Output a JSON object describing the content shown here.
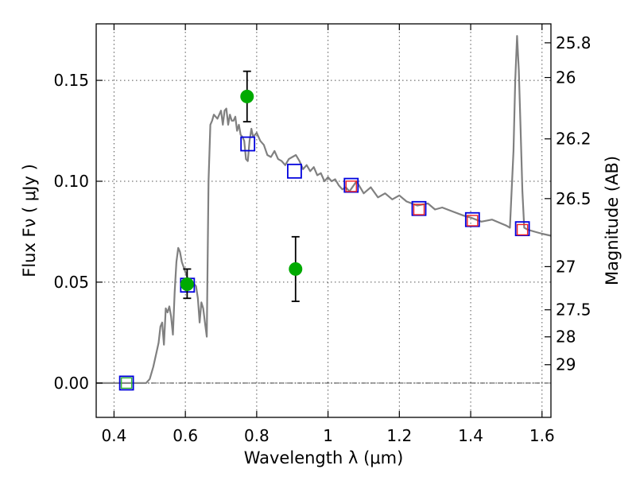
{
  "chart_data": {
    "type": "line",
    "xlabel": "Wavelength  λ (μm)",
    "ylabel": "Flux  Fν  ( μJy )",
    "y2label": "Magnitude (AB)",
    "xlim": [
      0.35,
      1.625
    ],
    "ylim": [
      -0.017,
      0.178
    ],
    "grid": true,
    "x_ticks": [
      0.4,
      0.6,
      0.8,
      1.0,
      1.2,
      1.4,
      1.6
    ],
    "x_tick_labels": [
      "0.4",
      "0.6",
      "0.8",
      "1",
      "1.2",
      "1.4",
      "1.6"
    ],
    "y_ticks": [
      0.0,
      0.05,
      0.1,
      0.15
    ],
    "y_tick_labels": [
      "0.00",
      "0.05",
      "0.10",
      "0.15"
    ],
    "y2_ticks": [
      {
        "label": "25.8",
        "flux": 0.1686
      },
      {
        "label": "26",
        "flux": 0.1514
      },
      {
        "label": "26.2",
        "flux": 0.121
      },
      {
        "label": "26.5",
        "flux": 0.0914
      },
      {
        "label": "27",
        "flux": 0.0577
      },
      {
        "label": "27.5",
        "flux": 0.0363
      },
      {
        "label": "28",
        "flux": 0.0229
      },
      {
        "label": "29",
        "flux": 0.0091
      }
    ],
    "series": [
      {
        "kind": "model_sed",
        "color": "#808080",
        "x": [
          0.35,
          0.49,
          0.5,
          0.51,
          0.52,
          0.525,
          0.53,
          0.535,
          0.54,
          0.545,
          0.55,
          0.555,
          0.56,
          0.565,
          0.57,
          0.575,
          0.58,
          0.585,
          0.59,
          0.6,
          0.61,
          0.62,
          0.63,
          0.635,
          0.64,
          0.645,
          0.65,
          0.655,
          0.66,
          0.665,
          0.67,
          0.675,
          0.68,
          0.69,
          0.7,
          0.705,
          0.71,
          0.715,
          0.72,
          0.725,
          0.73,
          0.735,
          0.74,
          0.745,
          0.75,
          0.755,
          0.76,
          0.765,
          0.77,
          0.775,
          0.78,
          0.785,
          0.79,
          0.8,
          0.81,
          0.82,
          0.83,
          0.84,
          0.85,
          0.86,
          0.87,
          0.88,
          0.89,
          0.9,
          0.91,
          0.92,
          0.93,
          0.94,
          0.95,
          0.96,
          0.97,
          0.98,
          0.99,
          1.0,
          1.01,
          1.02,
          1.03,
          1.04,
          1.05,
          1.06,
          1.08,
          1.1,
          1.12,
          1.14,
          1.16,
          1.18,
          1.2,
          1.22,
          1.25,
          1.28,
          1.3,
          1.32,
          1.35,
          1.38,
          1.4,
          1.43,
          1.46,
          1.5,
          1.51,
          1.52,
          1.525,
          1.53,
          1.535,
          1.54,
          1.545,
          1.55,
          1.56,
          1.58,
          1.6,
          1.625
        ],
        "values": [
          0.0,
          0.0,
          0.002,
          0.008,
          0.016,
          0.02,
          0.028,
          0.03,
          0.019,
          0.037,
          0.035,
          0.038,
          0.033,
          0.024,
          0.045,
          0.06,
          0.067,
          0.065,
          0.06,
          0.055,
          0.05,
          0.05,
          0.048,
          0.042,
          0.03,
          0.04,
          0.037,
          0.03,
          0.023,
          0.1,
          0.128,
          0.13,
          0.133,
          0.131,
          0.135,
          0.128,
          0.135,
          0.136,
          0.128,
          0.133,
          0.13,
          0.13,
          0.132,
          0.125,
          0.128,
          0.123,
          0.122,
          0.12,
          0.111,
          0.11,
          0.12,
          0.126,
          0.122,
          0.124,
          0.12,
          0.118,
          0.113,
          0.112,
          0.115,
          0.111,
          0.11,
          0.108,
          0.111,
          0.112,
          0.113,
          0.11,
          0.106,
          0.108,
          0.105,
          0.107,
          0.103,
          0.104,
          0.1,
          0.102,
          0.1,
          0.101,
          0.098,
          0.096,
          0.097,
          0.095,
          0.1,
          0.094,
          0.097,
          0.092,
          0.094,
          0.091,
          0.093,
          0.09,
          0.088,
          0.089,
          0.086,
          0.087,
          0.085,
          0.083,
          0.082,
          0.08,
          0.081,
          0.078,
          0.077,
          0.115,
          0.15,
          0.172,
          0.155,
          0.125,
          0.095,
          0.077,
          0.076,
          0.075,
          0.074,
          0.073
        ]
      },
      {
        "kind": "observed",
        "color": "#00aa00",
        "x": [
          0.605,
          0.773,
          0.909
        ],
        "values": [
          0.049,
          0.142,
          0.0565
        ],
        "err_upper": [
          0.0565,
          0.1545,
          0.0725
        ],
        "err_lower": [
          0.042,
          0.1295,
          0.0405
        ]
      },
      {
        "kind": "model_photometry_blue",
        "color": "#0000dd",
        "x": [
          0.435,
          0.606,
          0.775,
          0.906,
          1.065,
          1.255,
          1.405,
          1.545
        ],
        "values": [
          0.0,
          0.0485,
          0.1185,
          0.105,
          0.098,
          0.0865,
          0.081,
          0.0765
        ]
      },
      {
        "kind": "model_photometry_red",
        "color": "#ee2222",
        "x": [
          1.065,
          1.255,
          1.405,
          1.545
        ],
        "values": [
          0.0975,
          0.086,
          0.0805,
          0.076
        ]
      },
      {
        "kind": "model_photometry_green",
        "color": "#33bb33",
        "x": [
          0.435
        ],
        "values": [
          0.0
        ]
      }
    ]
  }
}
